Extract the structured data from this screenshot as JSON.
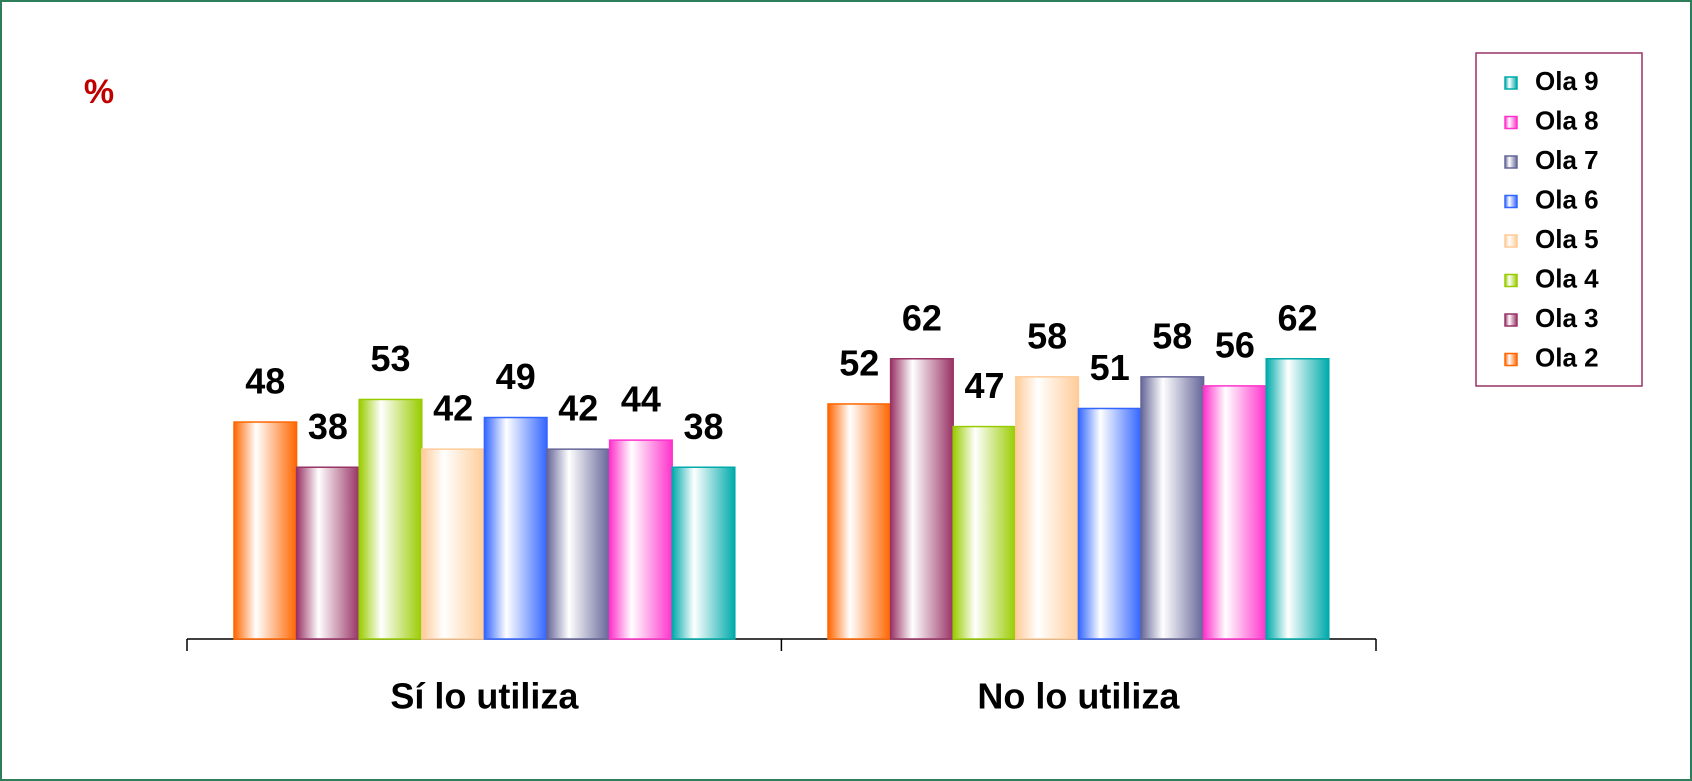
{
  "chart_data": {
    "type": "bar",
    "ylabel": "%",
    "categories": [
      "Sí lo utiliza",
      "No lo utiliza"
    ],
    "series": [
      {
        "name": "Ola 2",
        "color": "#ff6600",
        "values": [
          48,
          52
        ]
      },
      {
        "name": "Ola 3",
        "color": "#993366",
        "values": [
          38,
          62
        ]
      },
      {
        "name": "Ola 4",
        "color": "#99cc00",
        "values": [
          53,
          47
        ]
      },
      {
        "name": "Ola 5",
        "color": "#ffcc99",
        "values": [
          42,
          58
        ]
      },
      {
        "name": "Ola 6",
        "color": "#3366ff",
        "values": [
          49,
          51
        ]
      },
      {
        "name": "Ola 7",
        "color": "#666699",
        "values": [
          42,
          58
        ]
      },
      {
        "name": "Ola 8",
        "color": "#ff33cc",
        "values": [
          44,
          56
        ]
      },
      {
        "name": "Ola 9",
        "color": "#00aaaa",
        "values": [
          38,
          62
        ]
      }
    ],
    "legend": "top-right"
  }
}
